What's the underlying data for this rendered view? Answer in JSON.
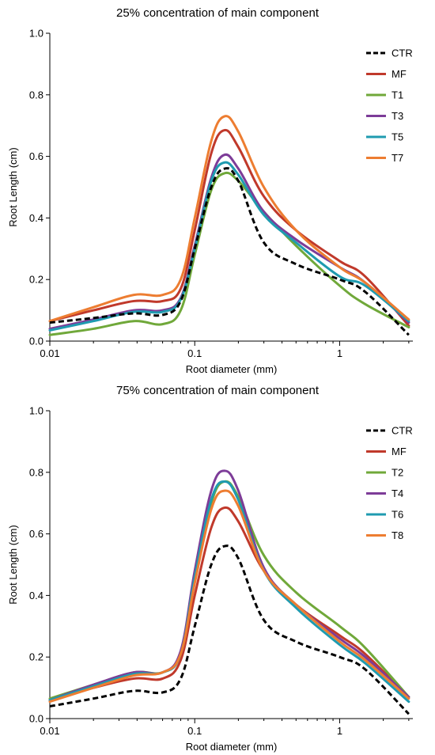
{
  "chart_data": [
    {
      "type": "line",
      "title": "25% concentration of main component",
      "xlabel": "Root diameter (mm)",
      "ylabel": "Root Length (cm)",
      "x_scale": "log",
      "xlim": [
        0.01,
        3.2
      ],
      "ylim": [
        0,
        1.0
      ],
      "x_ticks": [
        0.01,
        0.1,
        1
      ],
      "x_tick_labels": [
        "0.01",
        "0.1",
        "1"
      ],
      "y_ticks": [
        0,
        0.2,
        0.4,
        0.6,
        0.8,
        1.0
      ],
      "y_tick_labels": [
        "0.0",
        "0.2",
        "0.4",
        "0.6",
        "0.8",
        "1.0"
      ],
      "grid": false,
      "legend_position": "top-right",
      "x": [
        0.01,
        0.02,
        0.038,
        0.06,
        0.08,
        0.1,
        0.13,
        0.16,
        0.2,
        0.3,
        0.5,
        1.0,
        1.5,
        3.0
      ],
      "series": [
        {
          "name": "CTR",
          "color": "#000000",
          "dashed": true,
          "values": [
            0.06,
            0.075,
            0.09,
            0.085,
            0.13,
            0.3,
            0.5,
            0.56,
            0.52,
            0.32,
            0.25,
            0.2,
            0.16,
            0.02
          ]
        },
        {
          "name": "MF",
          "color": "#c0392b",
          "dashed": false,
          "values": [
            0.065,
            0.1,
            0.13,
            0.13,
            0.17,
            0.36,
            0.61,
            0.685,
            0.63,
            0.47,
            0.36,
            0.26,
            0.21,
            0.05
          ]
        },
        {
          "name": "T1",
          "color": "#70a83a",
          "dashed": false,
          "values": [
            0.02,
            0.04,
            0.065,
            0.055,
            0.1,
            0.28,
            0.49,
            0.545,
            0.52,
            0.42,
            0.31,
            0.18,
            0.12,
            0.045
          ]
        },
        {
          "name": "T3",
          "color": "#7d3c98",
          "dashed": false,
          "values": [
            0.04,
            0.07,
            0.1,
            0.1,
            0.14,
            0.31,
            0.53,
            0.605,
            0.56,
            0.42,
            0.33,
            0.24,
            0.19,
            0.06
          ]
        },
        {
          "name": "T5",
          "color": "#1f9bb0",
          "dashed": false,
          "values": [
            0.035,
            0.065,
            0.095,
            0.095,
            0.135,
            0.3,
            0.52,
            0.58,
            0.54,
            0.41,
            0.32,
            0.21,
            0.18,
            0.065
          ]
        },
        {
          "name": "T7",
          "color": "#ed7d31",
          "dashed": false,
          "values": [
            0.065,
            0.11,
            0.15,
            0.15,
            0.2,
            0.4,
            0.65,
            0.73,
            0.68,
            0.5,
            0.36,
            0.24,
            0.19,
            0.07
          ]
        }
      ]
    },
    {
      "type": "line",
      "title": "75% concentration of main component",
      "xlabel": "Root diameter (mm)",
      "ylabel": "Root Length (cm)",
      "x_scale": "log",
      "xlim": [
        0.01,
        3.2
      ],
      "ylim": [
        0,
        1.0
      ],
      "x_ticks": [
        0.01,
        0.1,
        1
      ],
      "x_tick_labels": [
        "0.01",
        "0.1",
        "1"
      ],
      "y_ticks": [
        0,
        0.2,
        0.4,
        0.6,
        0.8,
        1.0
      ],
      "y_tick_labels": [
        "0.0",
        "0.2",
        "0.4",
        "0.6",
        "0.8",
        "1.0"
      ],
      "grid": false,
      "legend_position": "top-right",
      "x": [
        0.01,
        0.02,
        0.038,
        0.06,
        0.08,
        0.1,
        0.13,
        0.16,
        0.2,
        0.3,
        0.5,
        1.0,
        1.5,
        3.0
      ],
      "series": [
        {
          "name": "CTR",
          "color": "#000000",
          "dashed": true,
          "values": [
            0.04,
            0.065,
            0.09,
            0.085,
            0.13,
            0.3,
            0.5,
            0.56,
            0.52,
            0.32,
            0.25,
            0.2,
            0.16,
            0.015
          ]
        },
        {
          "name": "MF",
          "color": "#c0392b",
          "dashed": false,
          "values": [
            0.06,
            0.1,
            0.13,
            0.13,
            0.19,
            0.4,
            0.62,
            0.685,
            0.64,
            0.48,
            0.37,
            0.27,
            0.21,
            0.07
          ]
        },
        {
          "name": "T2",
          "color": "#70a83a",
          "dashed": false,
          "values": [
            0.065,
            0.11,
            0.15,
            0.15,
            0.21,
            0.45,
            0.7,
            0.77,
            0.72,
            0.53,
            0.41,
            0.3,
            0.23,
            0.07
          ]
        },
        {
          "name": "T4",
          "color": "#7d3c98",
          "dashed": false,
          "values": [
            0.06,
            0.11,
            0.15,
            0.15,
            0.22,
            0.48,
            0.74,
            0.805,
            0.74,
            0.49,
            0.37,
            0.26,
            0.2,
            0.07
          ]
        },
        {
          "name": "T6",
          "color": "#1f9bb0",
          "dashed": false,
          "values": [
            0.06,
            0.105,
            0.145,
            0.15,
            0.21,
            0.46,
            0.71,
            0.77,
            0.71,
            0.48,
            0.36,
            0.24,
            0.18,
            0.055
          ]
        },
        {
          "name": "T8",
          "color": "#ed7d31",
          "dashed": false,
          "values": [
            0.055,
            0.1,
            0.14,
            0.15,
            0.21,
            0.44,
            0.68,
            0.74,
            0.69,
            0.48,
            0.37,
            0.25,
            0.19,
            0.065
          ]
        }
      ]
    }
  ]
}
